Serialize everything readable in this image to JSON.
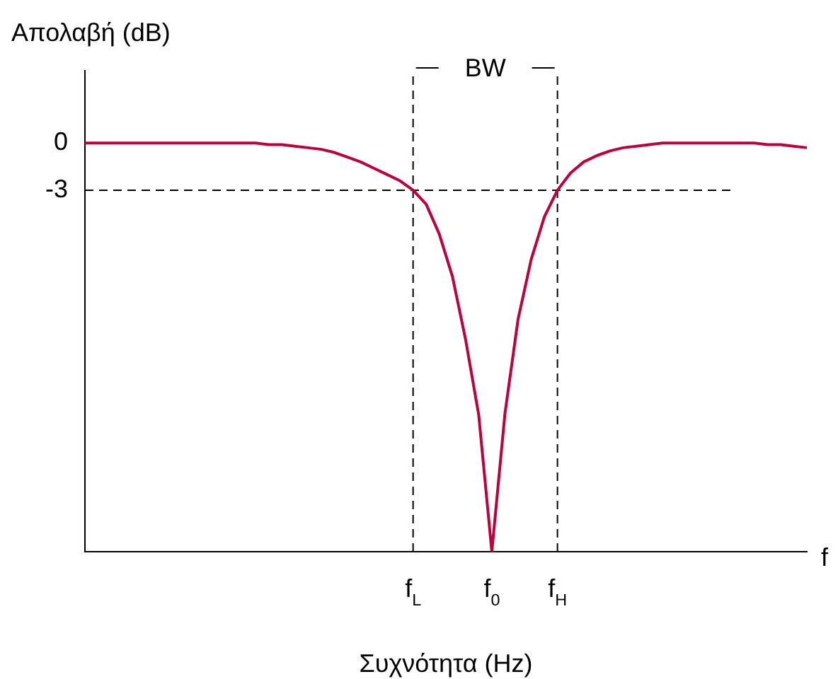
{
  "chart_data": {
    "type": "line",
    "xlabel": "Συχνότητα (Hz)",
    "ylabel": "Απολαβή (dB)",
    "categories": [
      null,
      null,
      null,
      null,
      null,
      null,
      null,
      null,
      null,
      null,
      null,
      null,
      null,
      null,
      null,
      null,
      null,
      null,
      null,
      null,
      null,
      null,
      null,
      null,
      null,
      "f$_{L}$",
      null,
      null,
      null,
      null,
      null,
      "f$_{0}$",
      null,
      null,
      null,
      null,
      "f$_{H}$",
      null,
      null,
      null,
      null,
      null,
      null,
      null,
      null,
      null,
      null,
      null,
      null,
      null,
      null,
      null,
      null,
      null,
      null,
      null
    ],
    "series": [
      {
        "color": "#c0003a",
        "values": [
          0,
          0,
          0,
          0,
          0,
          0,
          0,
          0,
          0,
          0,
          0,
          0,
          0,
          0,
          -0.1,
          -0.1,
          -0.2,
          -0.3,
          -0.4,
          -0.6,
          -0.9,
          -1.2,
          -1.6,
          -2.0,
          -2.4,
          -3.0,
          -3.9,
          -5.8,
          -8.5,
          -12.5,
          -17.3,
          -26,
          -17.2,
          -11.2,
          -7.4,
          -4.7,
          -3.0,
          -1.9,
          -1.2,
          -0.8,
          -0.5,
          -0.3,
          -0.2,
          -0.1,
          0,
          0,
          0,
          0,
          0,
          0,
          0,
          0,
          -0.1,
          -0.1,
          -0.2,
          -0.3
        ]
      }
    ],
    "ylim": [
      -26,
      4.6
    ],
    "yticks": [
      0,
      -3
    ],
    "ref_lines": [
      {
        "axis": "x",
        "value": "f$_{L}$",
        "line_style": "dashed",
        "color": "#000000"
      },
      {
        "axis": "x",
        "value": "f$_{H}$",
        "line_style": "dashed",
        "color": "#000000"
      },
      {
        "axis": "y",
        "value": -3,
        "line_style": "dashed",
        "color": "#000000"
      }
    ],
    "annotations": [
      "BW",
      "f"
    ],
    "grid": false,
    "legend": false,
    "marker": "none",
    "line_style": "solid"
  }
}
